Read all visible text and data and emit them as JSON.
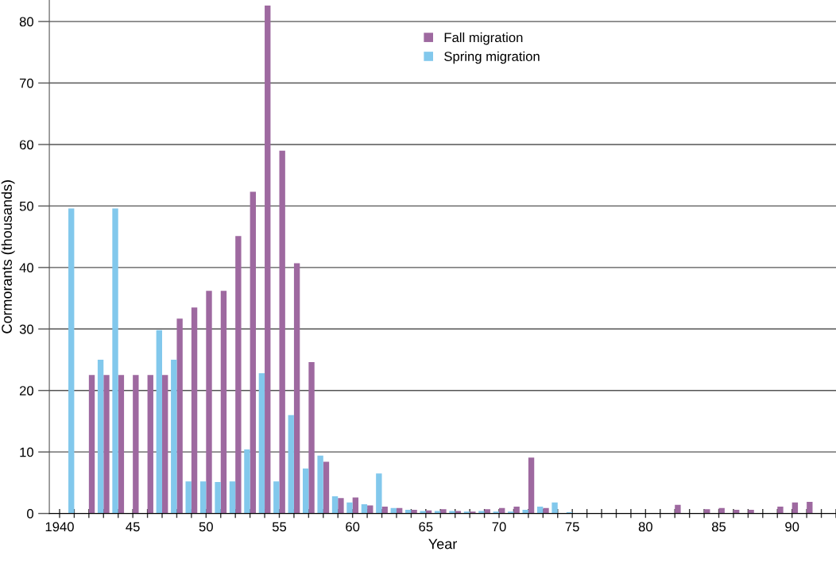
{
  "chart_data": {
    "type": "bar",
    "xlabel": "Year",
    "ylabel": "Cormorants (thousands)",
    "x": [
      1941,
      1942,
      1943,
      1944,
      1945,
      1946,
      1947,
      1948,
      1949,
      1950,
      1951,
      1952,
      1953,
      1954,
      1955,
      1956,
      1957,
      1958,
      1959,
      1960,
      1961,
      1962,
      1963,
      1964,
      1965,
      1966,
      1967,
      1968,
      1969,
      1970,
      1971,
      1972,
      1973,
      1974,
      1975,
      1976,
      1977,
      1978,
      1979,
      1980,
      1981,
      1982,
      1983,
      1984,
      1985,
      1986,
      1987,
      1988,
      1989,
      1990,
      1991
    ],
    "series": [
      {
        "name": "Fall migration",
        "color": "#9e69a0",
        "values": [
          null,
          22.5,
          22.5,
          22.5,
          22.5,
          22.5,
          22.5,
          31.7,
          33.5,
          36.2,
          36.2,
          45.1,
          52.3,
          82.6,
          59,
          40.7,
          24.6,
          8.4,
          2.5,
          2.6,
          1.3,
          1.1,
          0.9,
          0.6,
          0.5,
          0.7,
          0.4,
          0.3,
          0.7,
          0.9,
          1.1,
          9.1,
          0.9,
          null,
          null,
          null,
          null,
          null,
          null,
          null,
          null,
          1.4,
          null,
          0.7,
          0.9,
          0.6,
          0.6,
          null,
          1.1,
          1.8,
          1.9
        ]
      },
      {
        "name": "Spring migration",
        "color": "#82c8ec",
        "values": [
          49.6,
          null,
          25,
          49.6,
          null,
          null,
          29.8,
          25,
          5.2,
          5.2,
          5.1,
          5.2,
          10.4,
          22.8,
          5.2,
          16,
          7.3,
          9.4,
          2.8,
          1.8,
          1.5,
          6.5,
          0.9,
          0.6,
          0.4,
          0.4,
          0.4,
          0.3,
          0.4,
          0.3,
          0.3,
          0.6,
          1.1,
          1.8,
          0.2,
          null,
          null,
          null,
          null,
          null,
          null,
          null,
          null,
          null,
          null,
          null,
          null,
          null,
          null,
          null,
          null
        ]
      }
    ],
    "xlim": [
      1939.3,
      1993
    ],
    "xticks": [
      1940,
      {
        "value": 1941,
        "label": null
      },
      {
        "value": 1942,
        "label": null
      },
      {
        "value": 1943,
        "label": null
      },
      {
        "value": 1944,
        "label": null
      },
      {
        "value": 1945,
        "label": "45"
      },
      {
        "value": 1946,
        "label": null
      },
      {
        "value": 1947,
        "label": null
      },
      {
        "value": 1948,
        "label": null
      },
      {
        "value": 1949,
        "label": null
      },
      {
        "value": 1950,
        "label": "50"
      },
      {
        "value": 1951,
        "label": null
      },
      {
        "value": 1952,
        "label": null
      },
      {
        "value": 1953,
        "label": null
      },
      {
        "value": 1954,
        "label": null
      },
      {
        "value": 1955,
        "label": "55"
      },
      {
        "value": 1956,
        "label": null
      },
      {
        "value": 1957,
        "label": null
      },
      {
        "value": 1958,
        "label": null
      },
      {
        "value": 1959,
        "label": null
      },
      {
        "value": 1960,
        "label": "60"
      },
      {
        "value": 1961,
        "label": null
      },
      {
        "value": 1962,
        "label": null
      },
      {
        "value": 1963,
        "label": null
      },
      {
        "value": 1964,
        "label": null
      },
      {
        "value": 1965,
        "label": "65"
      },
      {
        "value": 1966,
        "label": null
      },
      {
        "value": 1967,
        "label": null
      },
      {
        "value": 1968,
        "label": null
      },
      {
        "value": 1969,
        "label": null
      },
      {
        "value": 1970,
        "label": "70"
      },
      {
        "value": 1971,
        "label": null
      },
      {
        "value": 1972,
        "label": null
      },
      {
        "value": 1973,
        "label": null
      },
      {
        "value": 1974,
        "label": null
      },
      {
        "value": 1975,
        "label": "75"
      },
      {
        "value": 1976,
        "label": null
      },
      {
        "value": 1977,
        "label": null
      },
      {
        "value": 1978,
        "label": null
      },
      {
        "value": 1979,
        "label": null
      },
      {
        "value": 1980,
        "label": "80"
      },
      {
        "value": 1981,
        "label": null
      },
      {
        "value": 1982,
        "label": null
      },
      {
        "value": 1983,
        "label": null
      },
      {
        "value": 1984,
        "label": null
      },
      {
        "value": 1985,
        "label": "85"
      },
      {
        "value": 1986,
        "label": null
      },
      {
        "value": 1987,
        "label": null
      },
      {
        "value": 1988,
        "label": null
      },
      {
        "value": 1989,
        "label": null
      },
      {
        "value": 1990,
        "label": "90"
      },
      {
        "value": 1991,
        "label": null
      },
      {
        "value": 1992,
        "label": null
      },
      {
        "value": 1993,
        "label": null
      }
    ],
    "ylim": [
      0,
      83.5
    ],
    "yticks": [
      0,
      10,
      20,
      30,
      40,
      50,
      60,
      70,
      80
    ],
    "grid": "y",
    "legend": "top"
  }
}
